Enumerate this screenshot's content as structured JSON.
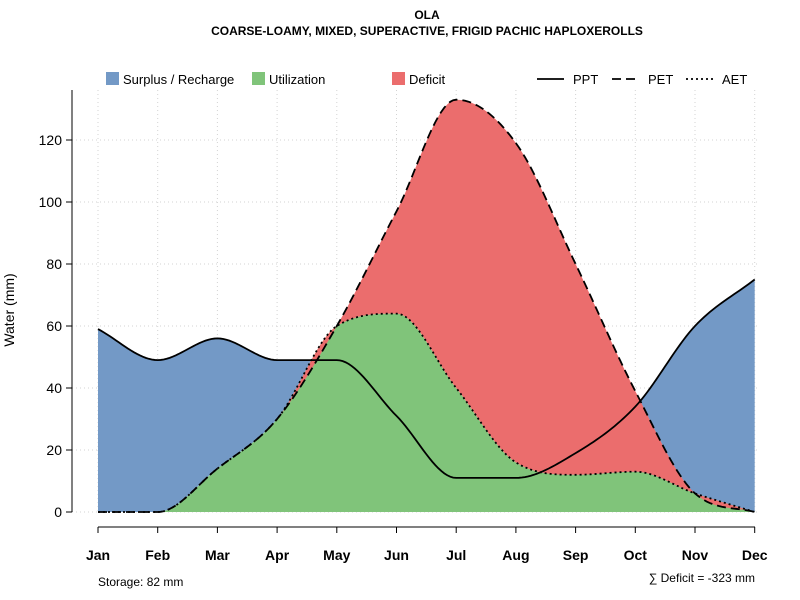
{
  "chart_data": {
    "type": "area",
    "title": "OLA",
    "subtitle": "COARSE-LOAMY, MIXED, SUPERACTIVE, FRIGID PACHIC HAPLOXEROLLS",
    "xlabel": "",
    "ylabel": "Water (mm)",
    "ylim": [
      0,
      135
    ],
    "yticks": [
      0,
      20,
      40,
      60,
      80,
      100,
      120
    ],
    "categories": [
      "Jan",
      "Feb",
      "Mar",
      "Apr",
      "May",
      "Jun",
      "Jul",
      "Aug",
      "Sep",
      "Oct",
      "Nov",
      "Dec"
    ],
    "series": [
      {
        "name": "PPT",
        "line": "solid",
        "values": [
          59,
          49,
          56,
          49,
          49,
          31,
          11,
          11,
          19,
          34,
          60,
          75
        ]
      },
      {
        "name": "PET",
        "line": "dashed",
        "values": [
          0,
          0,
          14,
          30,
          60,
          97,
          133,
          119,
          80,
          39,
          6,
          0
        ]
      },
      {
        "name": "AET",
        "line": "dotted",
        "values": [
          0,
          0,
          14,
          30,
          60,
          64,
          40,
          16,
          12,
          13,
          6,
          0
        ]
      }
    ],
    "fills": [
      {
        "name": "Surplus / Recharge",
        "color": "#7399c6"
      },
      {
        "name": "Utilization",
        "color": "#80c47a"
      },
      {
        "name": "Deficit",
        "color": "#eb6d6d"
      }
    ],
    "line_legend": [
      "PPT",
      "PET",
      "AET"
    ],
    "grid": true,
    "legend_position": "top",
    "annotations": {
      "storage": "Storage: 82 mm",
      "deficit": "∑ Deficit = -323 mm"
    }
  }
}
